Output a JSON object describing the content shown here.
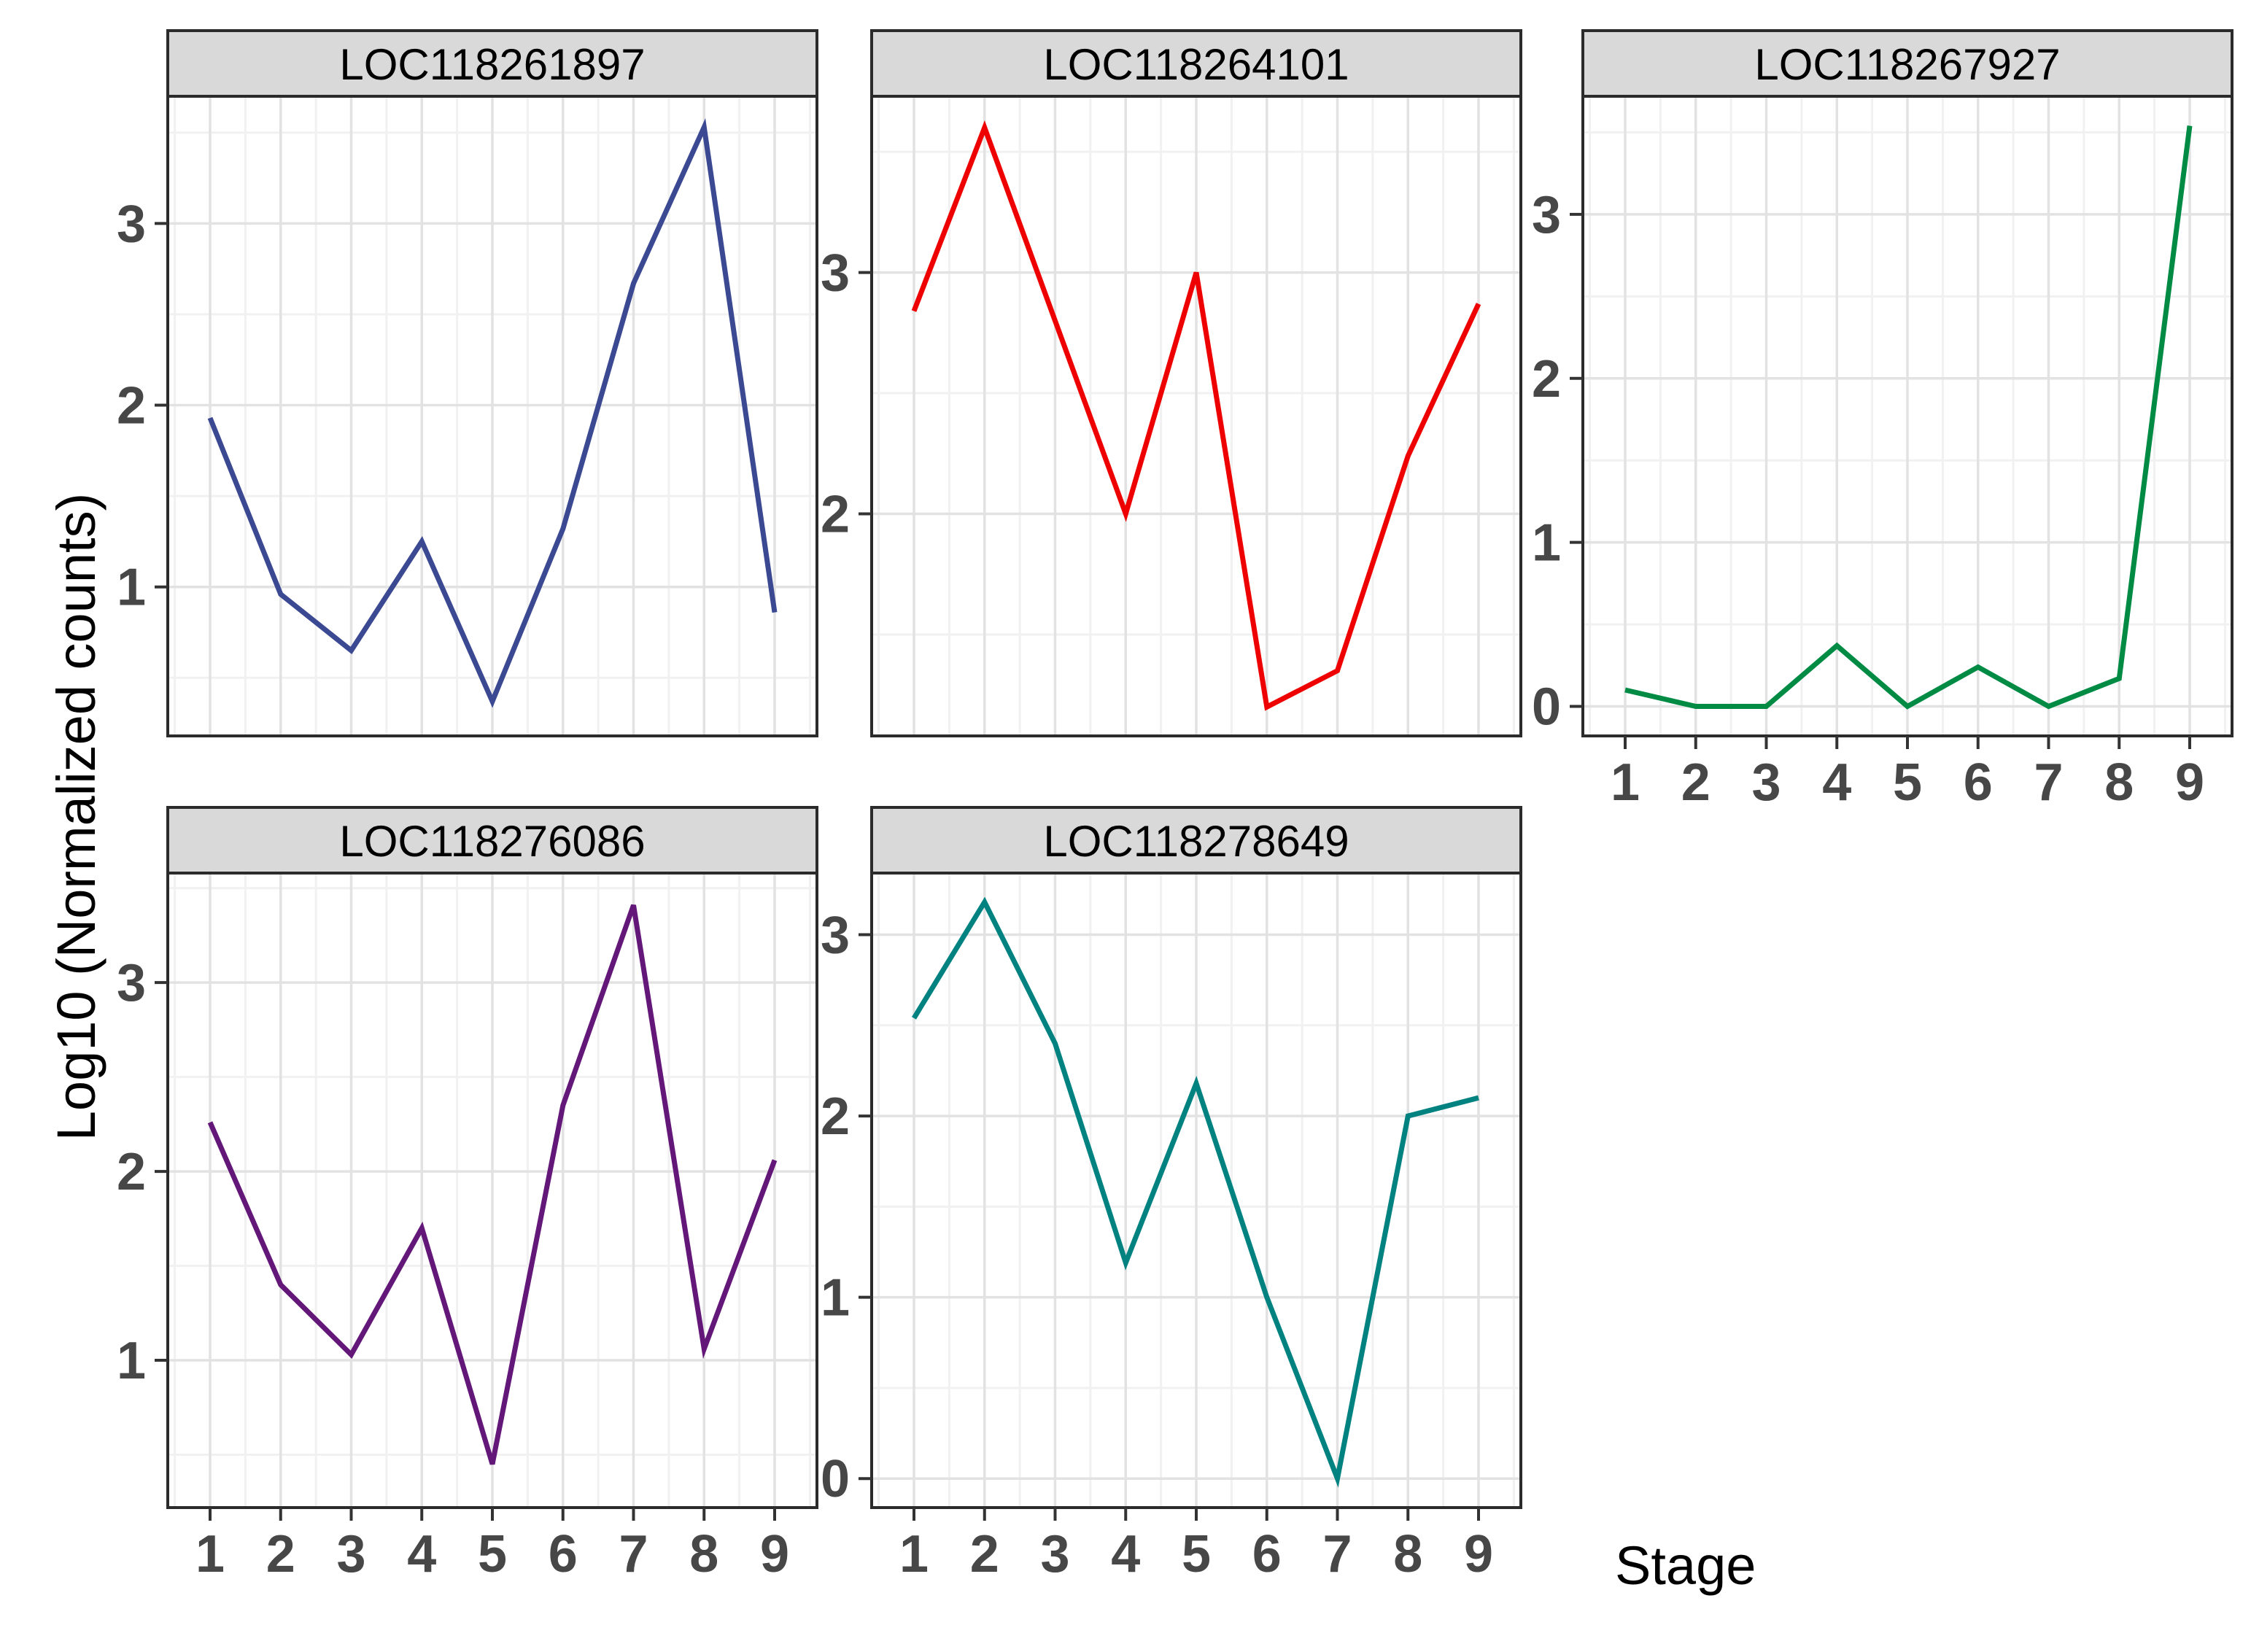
{
  "figure": {
    "ylabel": "Log10 (Normalized counts)",
    "xlabel": "Stage",
    "strip_bg": "#d9d9d9",
    "panel_bg": "#ffffff",
    "panel_border": "#2b2b2b",
    "grid_major": "#e2e2e2",
    "grid_minor": "#f1f1f1",
    "tick_mark_color": "#333333",
    "tick_label_color": "#474747",
    "axis_title_color": "#000000",
    "strip_text_color": "#000000"
  },
  "chart_data": [
    {
      "type": "line",
      "title": "LOC118261897",
      "color": "#3B4992",
      "x": [
        1,
        2,
        3,
        4,
        5,
        6,
        7,
        8,
        9
      ],
      "values": [
        1.93,
        0.96,
        0.65,
        1.25,
        0.37,
        1.32,
        2.67,
        3.53,
        0.86
      ],
      "y_ticks": [
        1,
        2,
        3
      ],
      "ylim": [
        0.18,
        3.7
      ],
      "show_x_axis": false,
      "legend": "none",
      "grid": true
    },
    {
      "type": "line",
      "title": "LOC118264101",
      "color": "#EE0000",
      "x": [
        1,
        2,
        3,
        4,
        5,
        6,
        7,
        8,
        9
      ],
      "values": [
        2.84,
        3.6,
        2.8,
        2.0,
        3.0,
        1.2,
        1.35,
        2.24,
        2.87
      ],
      "y_ticks": [
        2,
        3
      ],
      "ylim": [
        1.08,
        3.73
      ],
      "show_x_axis": false,
      "legend": "none",
      "grid": true
    },
    {
      "type": "line",
      "title": "LOC118267927",
      "color": "#008B45",
      "x": [
        1,
        2,
        3,
        4,
        5,
        6,
        7,
        8,
        9
      ],
      "values": [
        0.1,
        0.0,
        0.0,
        0.37,
        0.0,
        0.24,
        0.0,
        0.17,
        3.54
      ],
      "y_ticks": [
        0,
        1,
        2,
        3
      ],
      "ylim": [
        -0.18,
        3.72
      ],
      "show_x_axis": true,
      "legend": "none",
      "grid": true
    },
    {
      "type": "line",
      "title": "LOC118276086",
      "color": "#631879",
      "x": [
        1,
        2,
        3,
        4,
        5,
        6,
        7,
        8,
        9
      ],
      "values": [
        2.26,
        1.4,
        1.03,
        1.7,
        0.45,
        2.35,
        3.41,
        1.06,
        2.06
      ],
      "y_ticks": [
        1,
        2,
        3
      ],
      "ylim": [
        0.22,
        3.58
      ],
      "show_x_axis": true,
      "legend": "none",
      "grid": true
    },
    {
      "type": "line",
      "title": "LOC118278649",
      "color": "#008280",
      "x": [
        1,
        2,
        3,
        4,
        5,
        6,
        7,
        8,
        9
      ],
      "values": [
        2.54,
        3.18,
        2.4,
        1.19,
        2.18,
        1.0,
        0.0,
        2.0,
        2.1
      ],
      "y_ticks": [
        0,
        1,
        2,
        3
      ],
      "ylim": [
        -0.16,
        3.34
      ],
      "show_x_axis": true,
      "legend": "none",
      "grid": true
    }
  ]
}
